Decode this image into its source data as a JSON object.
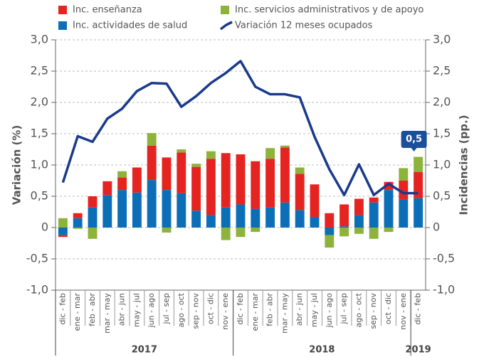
{
  "chart_data": {
    "type": "bar",
    "y_label": "Variación (%)",
    "y2_label": "Incidencias (pp.)",
    "category_groups": [
      {
        "label": "2017",
        "categories": [
          "dic - feb",
          "ene - mar",
          "feb - abr",
          "mar - may",
          "abr - jun",
          "may - jul",
          "jun - ago",
          "jul - sep",
          "ago - oct",
          "sep - nov",
          "oct - dic",
          "nov - ene"
        ]
      },
      {
        "label": "2018",
        "categories": [
          "dic - feb",
          "ene - mar",
          "feb - abr",
          "mar - may",
          "abr - jun",
          "may - jul",
          "jun - ago",
          "jul - sep",
          "ago - oct",
          "sep - nov",
          "oct - dic",
          "nov - ene"
        ]
      },
      {
        "label": "2019",
        "categories": [
          "dic - feb"
        ]
      }
    ],
    "series": [
      {
        "name": "Inc. actividades de salud",
        "color": "#0d6eb8",
        "type": "bar",
        "axis": "y2",
        "values": [
          -0.12,
          0.15,
          0.32,
          0.52,
          0.6,
          0.56,
          0.76,
          0.6,
          0.55,
          0.27,
          0.2,
          0.32,
          0.37,
          0.3,
          0.32,
          0.4,
          0.28,
          0.17,
          -0.12,
          0.02,
          0.2,
          0.4,
          0.6,
          0.45,
          0.47
        ]
      },
      {
        "name": "Inc. enseñanza",
        "color": "#e52421",
        "type": "bar",
        "axis": "y2",
        "values": [
          -0.03,
          0.08,
          0.18,
          0.22,
          0.2,
          0.4,
          0.55,
          0.52,
          0.65,
          0.7,
          0.9,
          0.87,
          0.8,
          0.76,
          0.78,
          0.88,
          0.58,
          0.52,
          0.23,
          0.35,
          0.26,
          0.08,
          0.13,
          0.3,
          0.42
        ]
      },
      {
        "name": "Inc. servicios administrativos y de apoyo",
        "color": "#8db33a",
        "type": "bar",
        "axis": "y2",
        "values": [
          0.15,
          -0.02,
          -0.18,
          0,
          0.1,
          0,
          0.2,
          -0.08,
          0.05,
          0.05,
          0.12,
          -0.2,
          -0.15,
          -0.07,
          0.17,
          0.03,
          0.1,
          0,
          -0.2,
          -0.14,
          -0.1,
          -0.18,
          -0.07,
          0.2,
          0.24
        ]
      },
      {
        "name": "Variación 12 meses ocupados",
        "color": "#1a3a8c",
        "type": "line",
        "axis": "y",
        "values": [
          0.72,
          1.46,
          1.37,
          1.74,
          1.9,
          2.18,
          2.31,
          2.3,
          1.93,
          2.1,
          2.31,
          2.47,
          2.66,
          2.25,
          2.13,
          2.13,
          2.08,
          1.45,
          0.93,
          0.52,
          1.01,
          0.52,
          0.7,
          0.55,
          0.55
        ]
      }
    ],
    "annotation": "0,5",
    "ylim": [
      -1,
      3
    ],
    "yticks": [
      {
        "value": -1,
        "label": "-1,0"
      },
      {
        "value": -0.5,
        "label": "-0,5"
      },
      0,
      {
        "value": 0.5,
        "label": "0,5"
      },
      {
        "value": 1,
        "label": "1,0"
      },
      {
        "value": 1.5,
        "label": "1,5"
      },
      {
        "value": 2,
        "label": "2,0"
      },
      {
        "value": 2.5,
        "label": "2,5"
      },
      {
        "value": 3,
        "label": "3,0"
      }
    ],
    "y2lim": [
      -1,
      3
    ],
    "y2ticks": [
      {
        "value": -1,
        "label": "-1,0"
      },
      {
        "value": -0.5,
        "label": "-0,5"
      },
      0,
      {
        "value": 0.5,
        "label": "0,5"
      },
      {
        "value": 1,
        "label": "1,0"
      },
      {
        "value": 1.5,
        "label": "1,5"
      },
      {
        "value": 2,
        "label": "2,0"
      },
      {
        "value": 2.5,
        "label": "2,5"
      },
      {
        "value": 3,
        "label": "3,0"
      }
    ],
    "grid": true
  }
}
